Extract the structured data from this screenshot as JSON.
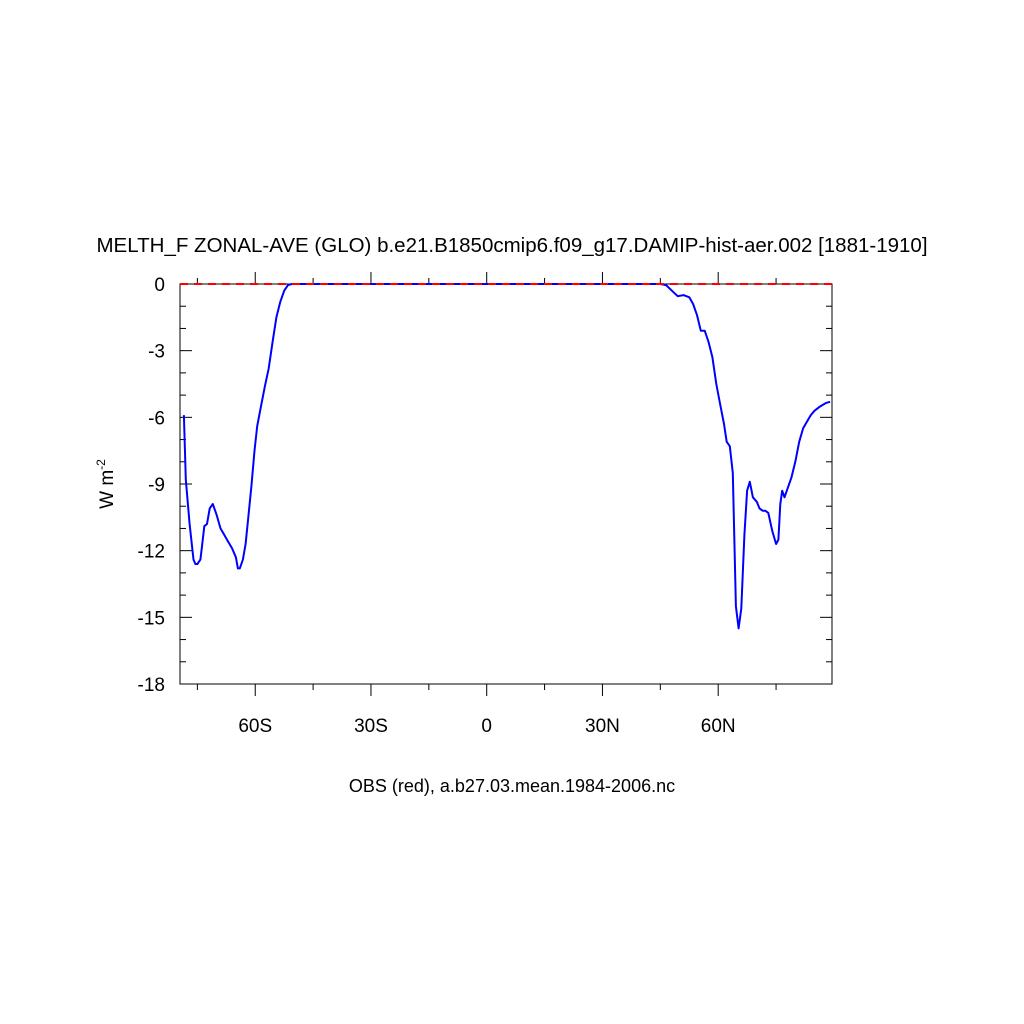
{
  "chart_data": {
    "type": "line",
    "title": "MELTH_F ZONAL-AVE (GLO) b.e21.B1850cmip6.f09_g17.DAMIP-hist-aer.002 [1881-1910]",
    "ylabel_main": "W m",
    "ylabel_sup": "-2",
    "xlabel": "OBS (red), a.b27.03.mean.1984-2006.nc",
    "xlim": [
      -79.5,
      89.5
    ],
    "ylim": [
      -18,
      0
    ],
    "x_ticks": [
      {
        "value": -60,
        "label": "60S"
      },
      {
        "value": -30,
        "label": "30S"
      },
      {
        "value": 0,
        "label": "0"
      },
      {
        "value": 30,
        "label": "30N"
      },
      {
        "value": 60,
        "label": "60N"
      }
    ],
    "y_ticks": [
      {
        "value": 0,
        "label": "0"
      },
      {
        "value": -3,
        "label": "-3"
      },
      {
        "value": -6,
        "label": "-6"
      },
      {
        "value": -9,
        "label": "-9"
      },
      {
        "value": -12,
        "label": "-12"
      },
      {
        "value": -15,
        "label": "-15"
      },
      {
        "value": -18,
        "label": "-18"
      }
    ],
    "series": [
      {
        "color": "#0000ff",
        "style": "solid",
        "x": [
          -78.5,
          -78.0,
          -77.0,
          -76.0,
          -75.5,
          -75.0,
          -74.2,
          -73.8,
          -73.2,
          -72.5,
          -71.8,
          -71.0,
          -70.0,
          -69.0,
          -68.0,
          -67.0,
          -66.0,
          -65.0,
          -64.5,
          -64.0,
          -63.2,
          -62.5,
          -61.8,
          -61.0,
          -60.2,
          -59.5,
          -58.5,
          -57.5,
          -56.5,
          -55.5,
          -54.5,
          -53.5,
          -52.5,
          -51.5,
          -50.5,
          -49.0,
          -47.0,
          -45.0,
          -40.0,
          -30.0,
          -20.0,
          -10.0,
          0.0,
          10.0,
          20.0,
          30.0,
          40.0,
          43.0,
          45.0,
          46.5,
          48.0,
          49.5,
          51.0,
          52.5,
          53.5,
          54.5,
          55.5,
          56.5,
          57.5,
          58.5,
          59.5,
          60.5,
          61.5,
          62.2,
          63.0,
          63.8,
          64.6,
          65.3,
          66.0,
          66.8,
          67.5,
          68.2,
          69.0,
          70.0,
          70.7,
          71.5,
          72.2,
          73.0,
          74.0,
          75.0,
          75.6,
          76.1,
          76.6,
          77.2,
          78.0,
          79.0,
          80.0,
          81.0,
          82.0,
          83.0,
          84.0,
          85.0,
          86.5,
          88.0,
          89.0
        ],
        "y": [
          -5.9,
          -8.8,
          -10.8,
          -12.4,
          -12.6,
          -12.6,
          -12.4,
          -11.8,
          -10.9,
          -10.8,
          -10.1,
          -9.9,
          -10.4,
          -11.0,
          -11.3,
          -11.6,
          -11.9,
          -12.3,
          -12.8,
          -12.8,
          -12.4,
          -11.7,
          -10.5,
          -9.1,
          -7.5,
          -6.4,
          -5.5,
          -4.6,
          -3.8,
          -2.6,
          -1.5,
          -0.8,
          -0.3,
          -0.05,
          0.0,
          0.0,
          0.0,
          0.0,
          0.0,
          0.0,
          0.0,
          0.0,
          0.0,
          0.0,
          0.0,
          0.0,
          0.0,
          0.0,
          0.0,
          -0.05,
          -0.3,
          -0.55,
          -0.5,
          -0.6,
          -0.9,
          -1.4,
          -2.1,
          -2.1,
          -2.6,
          -3.3,
          -4.5,
          -5.4,
          -6.3,
          -7.1,
          -7.3,
          -8.5,
          -14.5,
          -15.5,
          -14.6,
          -11.3,
          -9.3,
          -8.9,
          -9.6,
          -9.8,
          -10.1,
          -10.2,
          -10.2,
          -10.3,
          -11.1,
          -11.7,
          -11.5,
          -9.9,
          -9.3,
          -9.6,
          -9.2,
          -8.7,
          -8.0,
          -7.1,
          -6.5,
          -6.2,
          -5.9,
          -5.7,
          -5.5,
          -5.35,
          -5.3
        ]
      },
      {
        "color": "#ff0000",
        "style": "dashed",
        "x": [
          -79.5,
          89.5
        ],
        "y": [
          0,
          0
        ]
      }
    ]
  }
}
